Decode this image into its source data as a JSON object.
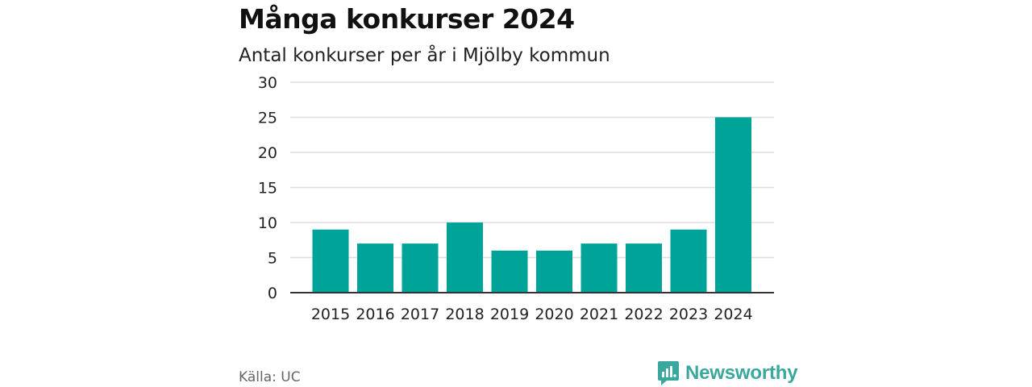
{
  "title": "Många konkurser 2024",
  "subtitle": "Antal konkurser per år i Mjölby kommun",
  "source": "Källa: UC",
  "brand": {
    "name": "Newsworthy",
    "icon": "newsworthy-logo-icon",
    "color": "#3aa89c"
  },
  "colors": {
    "bar": "#00a397",
    "grid": "#dddddd",
    "axis": "#333333"
  },
  "chart_data": {
    "type": "bar",
    "categories": [
      "2015",
      "2016",
      "2017",
      "2018",
      "2019",
      "2020",
      "2021",
      "2022",
      "2023",
      "2024"
    ],
    "values": [
      9,
      7,
      7,
      10,
      6,
      6,
      7,
      7,
      9,
      25
    ],
    "ylim": [
      0,
      30
    ],
    "yticks": [
      0,
      5,
      10,
      15,
      20,
      25,
      30
    ],
    "grid": true,
    "legend": "none"
  }
}
